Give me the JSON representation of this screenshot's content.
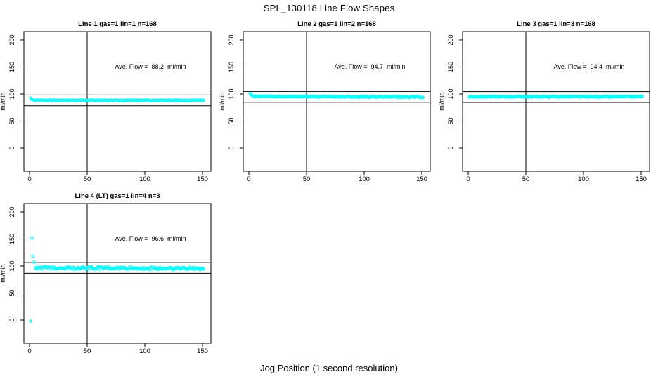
{
  "figure": {
    "title": "SPL_130118  Line Flow Shapes",
    "x_axis_label": "Jog Position (1 second resolution)"
  },
  "style": {
    "point_color": "#00FFFF",
    "axis_color": "#000000",
    "background": "#FFFFFF"
  },
  "chart_data": [
    {
      "type": "scatter",
      "title": "Line 1 gas=1 lin=1 n=168",
      "ylabel": "ml/min",
      "annotation": "Ave. Flow =  88.2  ml/min",
      "ave_flow_ml_min": 88.2,
      "n": 168,
      "x_ticks": [
        0,
        50,
        100,
        150
      ],
      "y_ticks": [
        0,
        50,
        100,
        150,
        200
      ],
      "xlim": [
        -5,
        157
      ],
      "ylim": [
        -43,
        216
      ],
      "ref_vline_x": 50,
      "ref_hlines": [
        98.2,
        78.2
      ],
      "series_segments": [
        {
          "x_from": 1,
          "x_to": 1,
          "y": 92.5,
          "jitter": 0
        },
        {
          "x_from": 2,
          "x_to": 2,
          "y": 90.3,
          "jitter": 0
        },
        {
          "x_from": 3,
          "x_to": 151,
          "y": 88.4,
          "y_end": 88.3,
          "jitter": 0.7
        }
      ]
    },
    {
      "type": "scatter",
      "title": "Line 2 gas=1 lin=2 n=168",
      "ylabel": "ml/min",
      "annotation": "Ave. Flow =  94.7  ml/min",
      "ave_flow_ml_min": 94.7,
      "n": 168,
      "x_ticks": [
        0,
        50,
        100,
        150
      ],
      "y_ticks": [
        0,
        50,
        100,
        150,
        200
      ],
      "xlim": [
        -5,
        157
      ],
      "ylim": [
        -43,
        216
      ],
      "ref_vline_x": 50,
      "ref_hlines": [
        104.7,
        84.7
      ],
      "series_segments": [
        {
          "x_from": 1,
          "x_to": 1,
          "y": 100.8,
          "jitter": 0
        },
        {
          "x_from": 2,
          "x_to": 2,
          "y": 98.6,
          "jitter": 0
        },
        {
          "x_from": 3,
          "x_to": 3,
          "y": 97.2,
          "jitter": 0
        },
        {
          "x_from": 4,
          "x_to": 4,
          "y": 96.4,
          "jitter": 0
        },
        {
          "x_from": 5,
          "x_to": 151,
          "y": 95.5,
          "y_end": 94.4,
          "jitter": 0.9
        }
      ]
    },
    {
      "type": "scatter",
      "title": "Line 3 gas=1 lin=3 n=168",
      "ylabel": "ml/min",
      "annotation": "Ave. Flow =  94.4  ml/min",
      "ave_flow_ml_min": 94.4,
      "n": 168,
      "x_ticks": [
        0,
        50,
        100,
        150
      ],
      "y_ticks": [
        0,
        50,
        100,
        150,
        200
      ],
      "xlim": [
        -5,
        157
      ],
      "ylim": [
        -43,
        216
      ],
      "ref_vline_x": 50,
      "ref_hlines": [
        104.4,
        84.4
      ],
      "series_segments": [
        {
          "x_from": 1,
          "x_to": 151,
          "y": 95.0,
          "y_end": 95.0,
          "jitter": 0.9
        }
      ]
    },
    {
      "type": "scatter",
      "title": "Line 4 (LT) gas=1 lin=4 n=3",
      "ylabel": "ml/min",
      "annotation": "Ave. Flow =  96.6  ml/min",
      "ave_flow_ml_min": 96.6,
      "n": 3,
      "x_ticks": [
        0,
        50,
        100,
        150
      ],
      "y_ticks": [
        0,
        50,
        100,
        150,
        200
      ],
      "xlim": [
        -5,
        157
      ],
      "ylim": [
        -43,
        216
      ],
      "ref_vline_x": 50,
      "ref_hlines": [
        106.6,
        86.6
      ],
      "series_segments": [
        {
          "x_from": 1,
          "x_to": 1,
          "y": -2,
          "jitter": 0
        },
        {
          "x_from": 2,
          "x_to": 2,
          "y": 152,
          "jitter": 0
        },
        {
          "x_from": 3,
          "x_to": 3,
          "y": 118,
          "jitter": 0
        },
        {
          "x_from": 4,
          "x_to": 4,
          "y": 107,
          "jitter": 0
        },
        {
          "x_from": 5,
          "x_to": 151,
          "y": 97.0,
          "y_end": 95.3,
          "jitter": 2.2
        }
      ]
    }
  ]
}
